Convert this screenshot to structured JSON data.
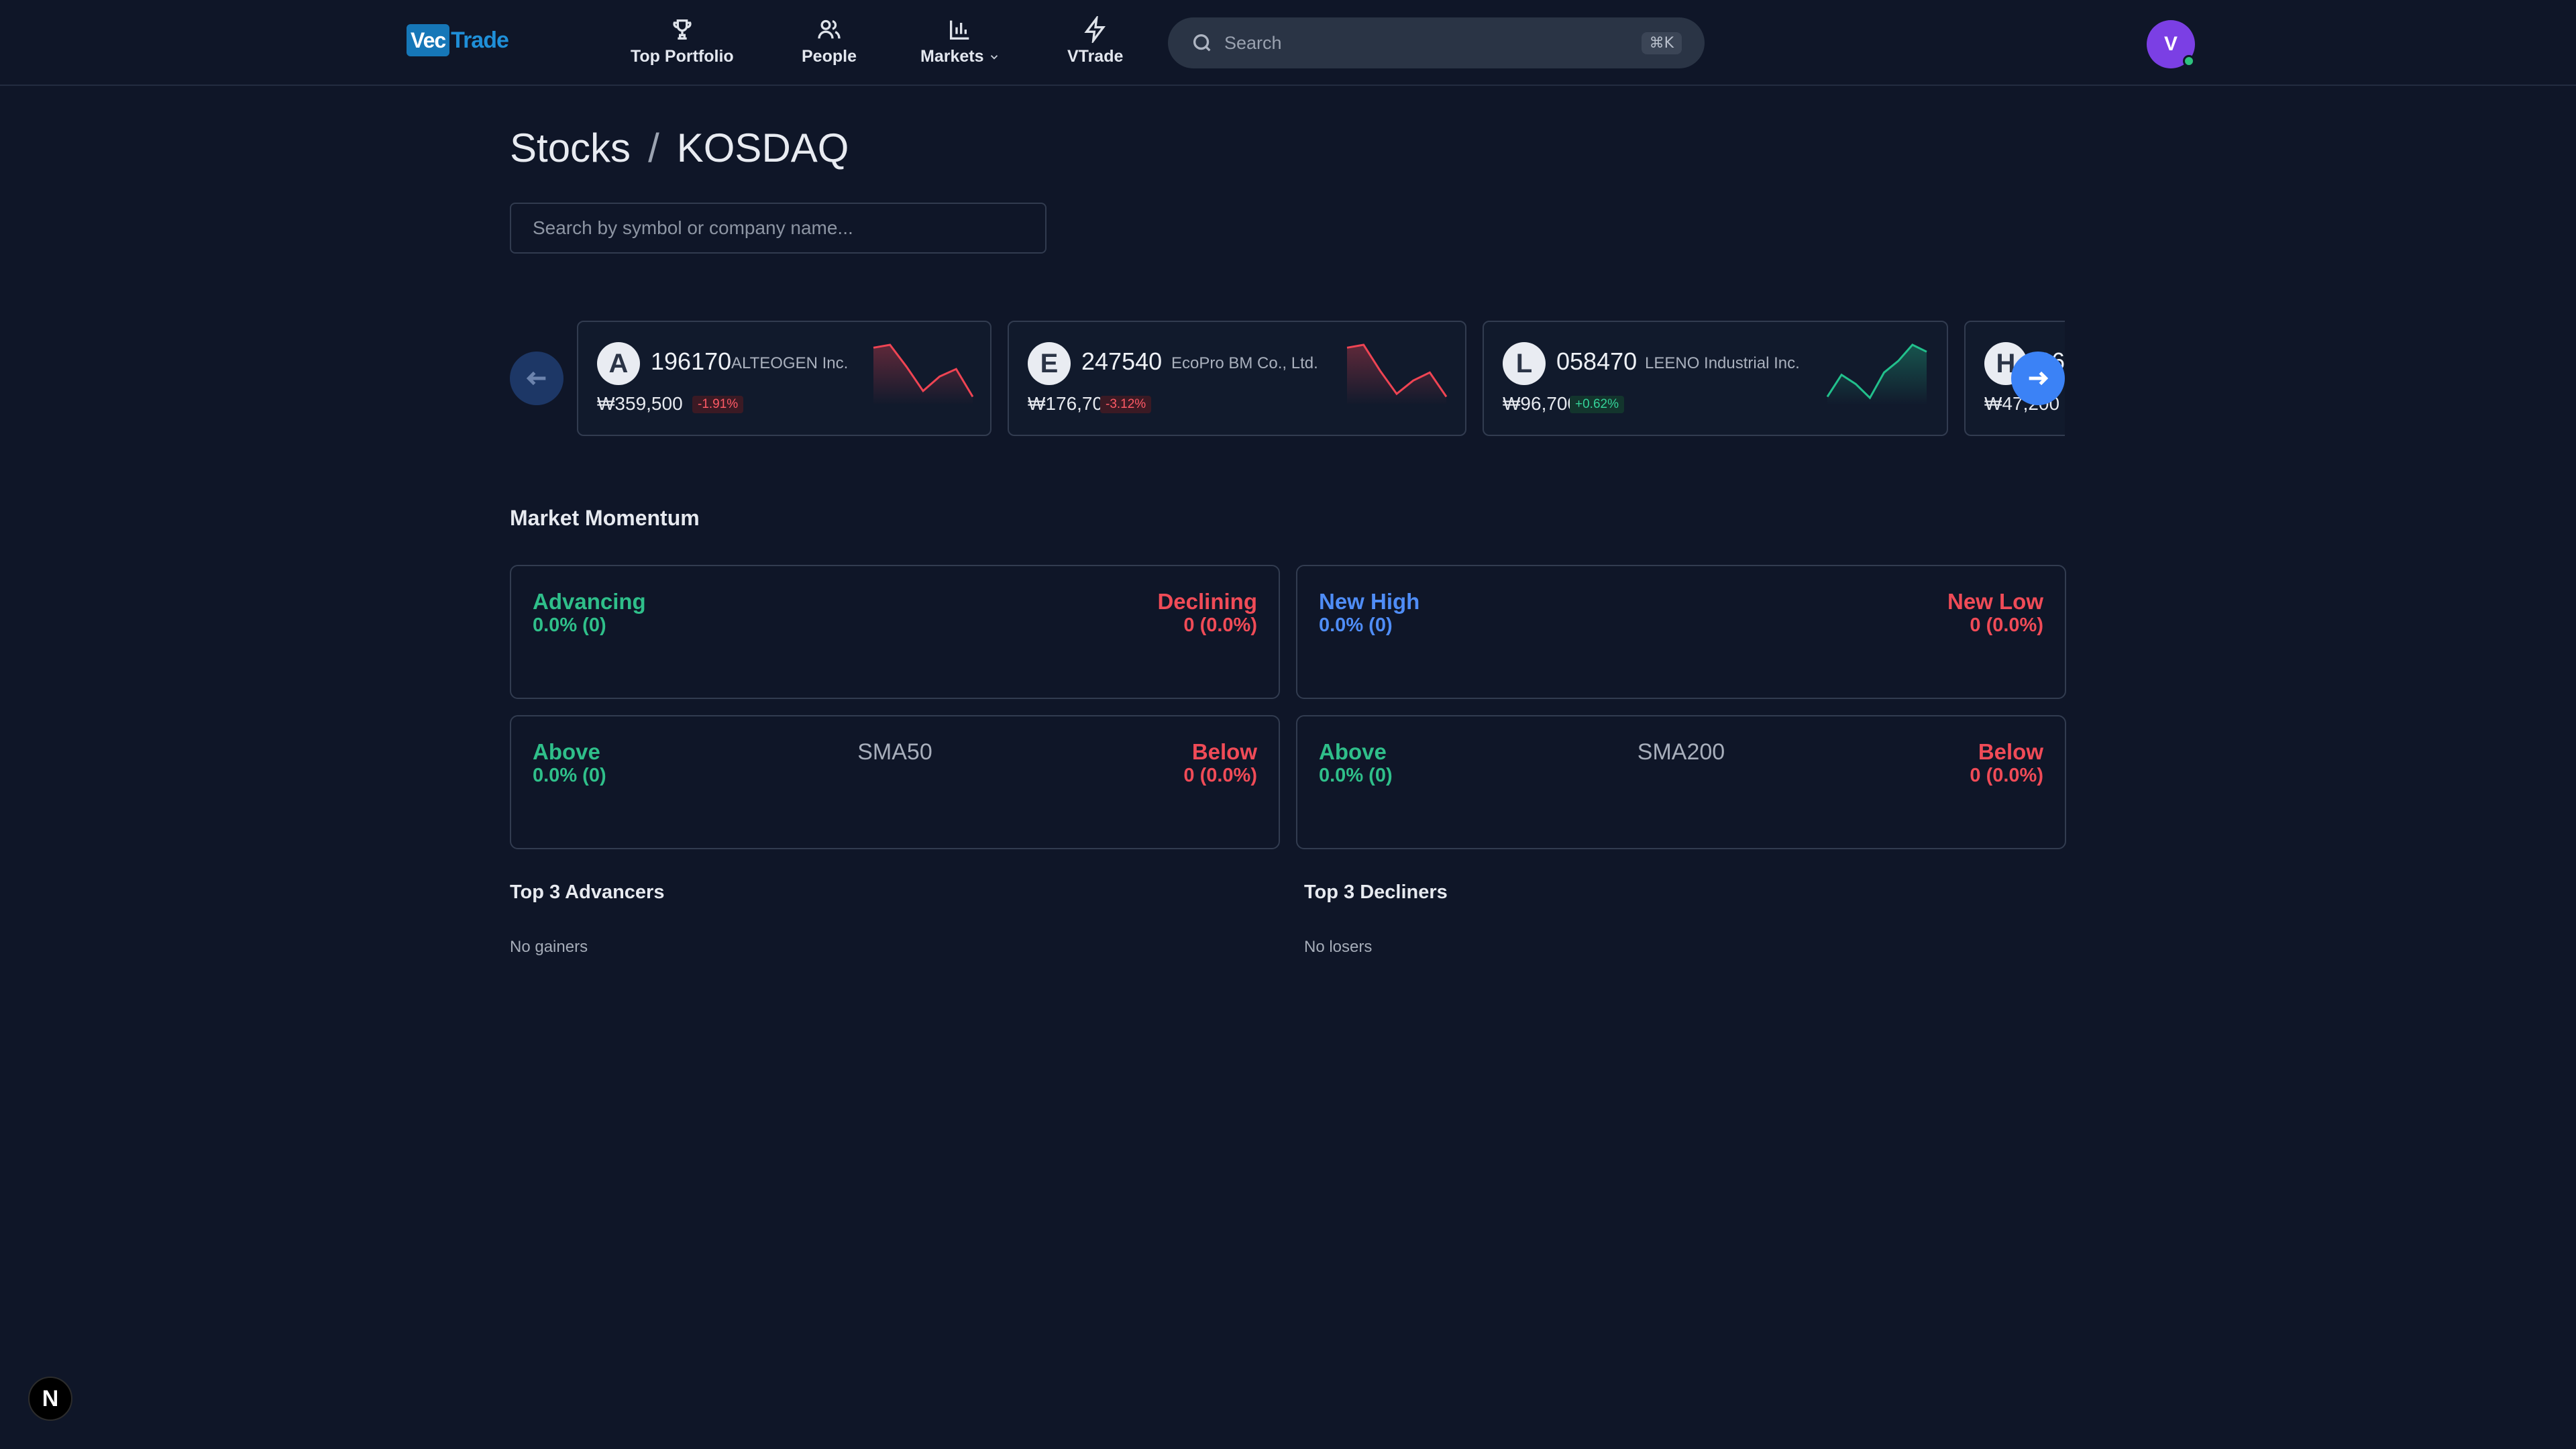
{
  "nav": {
    "logo_box": "Vec",
    "logo_text": "Trade",
    "items": [
      {
        "label": "Top Portfolio",
        "icon": "trophy-icon"
      },
      {
        "label": "People",
        "icon": "people-icon"
      },
      {
        "label": "Markets",
        "icon": "bar-chart-icon"
      },
      {
        "label": "VTrade",
        "icon": "lightning-icon"
      }
    ],
    "search_placeholder": "Search",
    "shortcut": "⌘K",
    "avatar_letter": "V"
  },
  "page": {
    "breadcrumb": [
      "Stocks",
      "/",
      "KOSDAQ"
    ],
    "symbol_search_placeholder": "Search by symbol or company name..."
  },
  "tickers": [
    {
      "letter": "A",
      "code": "196170",
      "name": "ALTEOGEN Inc.",
      "price": "₩359,500",
      "change": "-1.91%",
      "direction": "down",
      "color": "#ef4453",
      "spark": [
        0.95,
        1.0,
        0.62,
        0.2,
        0.45,
        0.58,
        0.1
      ]
    },
    {
      "letter": "E",
      "code": "247540",
      "name": "EcoPro BM Co., Ltd.",
      "price": "₩176,700",
      "change": "-3.12%",
      "direction": "down",
      "color": "#ef4453",
      "spark": [
        0.95,
        1.0,
        0.55,
        0.15,
        0.38,
        0.52,
        0.1
      ]
    },
    {
      "letter": "L",
      "code": "058470",
      "name": "LEENO Industrial Inc.",
      "price": "₩96,700",
      "change": "+0.62%",
      "direction": "up",
      "color": "#22c08c",
      "spark": [
        0.1,
        0.48,
        0.32,
        0.08,
        0.52,
        0.72,
        1.0,
        0.88
      ]
    },
    {
      "letter": "H",
      "code": "06",
      "name": "",
      "price": "₩47,200",
      "change": "",
      "direction": "up",
      "color": "#22c08c",
      "spark": []
    }
  ],
  "momentum": {
    "title": "Market Momentum",
    "advancing": {
      "label": "Advancing",
      "value": "0.0% (0)"
    },
    "declining": {
      "label": "Declining",
      "value": "0 (0.0%)"
    },
    "new_high": {
      "label": "New High",
      "value": "0.0% (0)"
    },
    "new_low": {
      "label": "New Low",
      "value": "0 (0.0%)"
    },
    "sma50": {
      "center": "SMA50",
      "above_label": "Above",
      "above_value": "0.0% (0)",
      "below_label": "Below",
      "below_value": "0 (0.0%)"
    },
    "sma200": {
      "center": "SMA200",
      "above_label": "Above",
      "above_value": "0.0% (0)",
      "below_label": "Below",
      "below_value": "0 (0.0%)"
    }
  },
  "advancers": {
    "title": "Top 3 Advancers",
    "empty": "No gainers"
  },
  "decliners": {
    "title": "Top 3 Decliners",
    "empty": "No losers"
  },
  "badge": "N",
  "colors": {
    "background": "#0f1628",
    "positive": "#2fbf8a",
    "negative": "#f04b57",
    "accent": "#3b82f6",
    "new_high": "#4f8df7"
  }
}
